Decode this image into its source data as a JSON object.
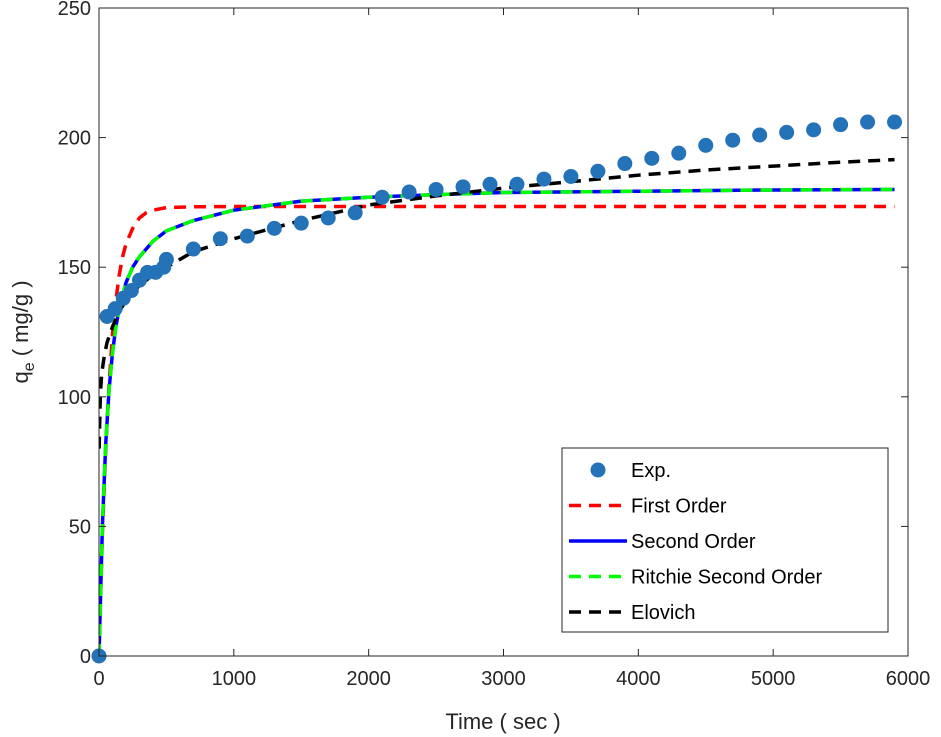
{
  "chart_data": {
    "type": "scatter",
    "xlabel": "Time ( sec )",
    "ylabel": "q",
    "ylabel_subscript": "e",
    "ylabel_units": " ( mg/g )",
    "xlim": [
      0,
      6000
    ],
    "ylim": [
      0,
      250
    ],
    "x_ticks": [
      0,
      1000,
      2000,
      3000,
      4000,
      5000,
      6000
    ],
    "y_ticks": [
      0,
      50,
      100,
      150,
      200,
      250
    ],
    "grid": false,
    "legend_position": "bottom-right",
    "colors": {
      "exp": "#2472b8",
      "first_order": "#ff0000",
      "second_order": "#0000ff",
      "ritchie": "#00ff00",
      "elovich": "#000000",
      "axis": "#262626"
    },
    "series": [
      {
        "name": "Exp.",
        "kind": "markers",
        "x": [
          0,
          60,
          120,
          180,
          240,
          300,
          360,
          420,
          480,
          500,
          700,
          900,
          1100,
          1300,
          1500,
          1700,
          1900,
          2100,
          2300,
          2500,
          2700,
          2900,
          3100,
          3300,
          3500,
          3700,
          3900,
          4100,
          4300,
          4500,
          4700,
          4900,
          5100,
          5300,
          5500,
          5700,
          5900
        ],
        "y": [
          0,
          131,
          134,
          138,
          141,
          145,
          148,
          148,
          150,
          153,
          157,
          161,
          162,
          165,
          167,
          169,
          171,
          177,
          179,
          180,
          181,
          182,
          182,
          184,
          185,
          187,
          190,
          192,
          194,
          197,
          199,
          201,
          202,
          203,
          205,
          206,
          206
        ]
      },
      {
        "name": "First Order",
        "kind": "dashed-line",
        "x": [
          0,
          25,
          50,
          75,
          100,
          125,
          150,
          175,
          200,
          250,
          300,
          350,
          400,
          500,
          700,
          1000,
          2000,
          3000,
          4000,
          5000,
          5900
        ],
        "y": [
          0,
          47,
          80,
          105,
          124,
          137,
          147,
          154,
          159,
          165,
          169,
          171,
          172,
          173,
          173.3,
          173.4,
          173.4,
          173.4,
          173.4,
          173.4,
          173.4
        ]
      },
      {
        "name": "Second Order",
        "kind": "solid-line",
        "x": [
          0,
          25,
          50,
          75,
          100,
          125,
          150,
          200,
          250,
          300,
          400,
          500,
          700,
          1000,
          1500,
          2000,
          2500,
          3000,
          4000,
          5000,
          5900
        ],
        "y": [
          0,
          50,
          82,
          103,
          117,
          127,
          134,
          144,
          150,
          154,
          160,
          164,
          168,
          172,
          175.5,
          177,
          178,
          178.8,
          179.3,
          179.8,
          180
        ]
      },
      {
        "name": "Ritchie Second Order",
        "kind": "dashed-line",
        "x": [
          0,
          25,
          50,
          75,
          100,
          125,
          150,
          200,
          250,
          300,
          400,
          500,
          700,
          1000,
          1500,
          2000,
          2500,
          3000,
          4000,
          5000,
          5900
        ],
        "y": [
          0,
          50,
          82,
          103,
          117,
          127,
          134,
          144,
          150,
          154,
          160,
          164,
          168,
          172,
          175.5,
          177,
          178,
          178.8,
          179.3,
          179.8,
          180
        ]
      },
      {
        "name": "Elovich",
        "kind": "dashed-line",
        "x": [
          1,
          10,
          20,
          40,
          60,
          100,
          150,
          200,
          300,
          400,
          500,
          700,
          1000,
          1500,
          2000,
          2500,
          3000,
          3500,
          4000,
          4500,
          5000,
          5500,
          5900
        ],
        "y": [
          80,
          101,
          109,
          116,
          121,
          127,
          133,
          137,
          143,
          147,
          150,
          156,
          161,
          168,
          174,
          177.5,
          180.5,
          183,
          185.5,
          187.5,
          189,
          190.5,
          191.5
        ]
      }
    ]
  }
}
